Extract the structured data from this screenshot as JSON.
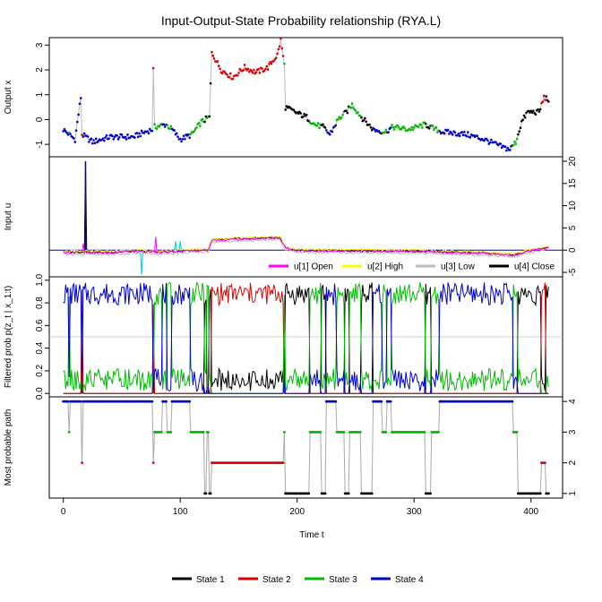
{
  "chart_data": {
    "type": "line",
    "title": "Input-Output-State Probability relationship (RYA.L)",
    "xlabel": "Time t",
    "xlim": [
      0,
      415
    ],
    "x_ticks": [
      0,
      100,
      200,
      300,
      400
    ],
    "state_colors": [
      "#000000",
      "#dd0000",
      "#00bb00",
      "#0000cc"
    ],
    "panels": [
      {
        "name": "output",
        "ylabel": "Output x",
        "ylim": [
          -1.5,
          3.3
        ],
        "y_ticks": [
          -1,
          0,
          1,
          2,
          3
        ],
        "tick_side": "left"
      },
      {
        "name": "input",
        "ylabel": "Input u",
        "ylim": [
          -6,
          21
        ],
        "y_ticks": [
          -5,
          0,
          5,
          10,
          15,
          20
        ],
        "tick_side": "right",
        "legend": [
          "u[1] Open",
          "u[2] High",
          "u[3] Low",
          "u[4] Close"
        ],
        "legend_colors": [
          "#ff00ff",
          "#ffff00",
          "#bbbbbb",
          "#000000"
        ]
      },
      {
        "name": "filtered",
        "ylabel": "Filtered prob p(z_t | x_1:t)",
        "ylim": [
          -0.03,
          1.03
        ],
        "y_ticks": [
          "0.0",
          "0.2",
          "0.4",
          "0.6",
          "0.8",
          "1.0"
        ],
        "tick_side": "left"
      },
      {
        "name": "path",
        "ylabel": "Most probable path",
        "ylim": [
          0.85,
          4.15
        ],
        "y_ticks": [
          1,
          2,
          3,
          4
        ],
        "tick_side": "right"
      }
    ],
    "state_segments": [
      {
        "start": 0,
        "end": 4,
        "state": 4
      },
      {
        "start": 5,
        "end": 5,
        "state": 3
      },
      {
        "start": 6,
        "end": 15,
        "state": 4
      },
      {
        "start": 16,
        "end": 16,
        "state": 2
      },
      {
        "start": 17,
        "end": 76,
        "state": 4
      },
      {
        "start": 77,
        "end": 77,
        "state": 2
      },
      {
        "start": 78,
        "end": 84,
        "state": 3
      },
      {
        "start": 85,
        "end": 88,
        "state": 4
      },
      {
        "start": 89,
        "end": 92,
        "state": 3
      },
      {
        "start": 93,
        "end": 108,
        "state": 4
      },
      {
        "start": 109,
        "end": 120,
        "state": 3
      },
      {
        "start": 121,
        "end": 122,
        "state": 1
      },
      {
        "start": 123,
        "end": 124,
        "state": 3
      },
      {
        "start": 125,
        "end": 126,
        "state": 1
      },
      {
        "start": 127,
        "end": 188,
        "state": 2
      },
      {
        "start": 189,
        "end": 189,
        "state": 3
      },
      {
        "start": 190,
        "end": 210,
        "state": 1
      },
      {
        "start": 211,
        "end": 220,
        "state": 3
      },
      {
        "start": 221,
        "end": 224,
        "state": 1
      },
      {
        "start": 225,
        "end": 233,
        "state": 4
      },
      {
        "start": 234,
        "end": 240,
        "state": 3
      },
      {
        "start": 241,
        "end": 244,
        "state": 1
      },
      {
        "start": 245,
        "end": 254,
        "state": 3
      },
      {
        "start": 255,
        "end": 264,
        "state": 1
      },
      {
        "start": 265,
        "end": 272,
        "state": 4
      },
      {
        "start": 273,
        "end": 276,
        "state": 3
      },
      {
        "start": 277,
        "end": 280,
        "state": 4
      },
      {
        "start": 281,
        "end": 309,
        "state": 3
      },
      {
        "start": 310,
        "end": 314,
        "state": 1
      },
      {
        "start": 315,
        "end": 321,
        "state": 3
      },
      {
        "start": 322,
        "end": 384,
        "state": 4
      },
      {
        "start": 385,
        "end": 388,
        "state": 3
      },
      {
        "start": 389,
        "end": 408,
        "state": 1
      },
      {
        "start": 409,
        "end": 412,
        "state": 2
      },
      {
        "start": 413,
        "end": 415,
        "state": 1
      }
    ],
    "output_keypoints": [
      [
        0,
        -0.4
      ],
      [
        10,
        -0.8
      ],
      [
        15,
        0.9
      ],
      [
        16,
        -0.6
      ],
      [
        25,
        -0.9
      ],
      [
        40,
        -0.7
      ],
      [
        60,
        -0.7
      ],
      [
        70,
        -0.5
      ],
      [
        76,
        -0.4
      ],
      [
        77,
        2.0
      ],
      [
        78,
        -0.3
      ],
      [
        88,
        -0.2
      ],
      [
        93,
        -0.4
      ],
      [
        100,
        -0.8
      ],
      [
        110,
        -0.6
      ],
      [
        118,
        -0.1
      ],
      [
        125,
        0.1
      ],
      [
        127,
        2.7
      ],
      [
        135,
        2.0
      ],
      [
        145,
        1.7
      ],
      [
        155,
        2.1
      ],
      [
        165,
        1.9
      ],
      [
        175,
        2.1
      ],
      [
        183,
        2.6
      ],
      [
        186,
        3.2
      ],
      [
        189,
        2.2
      ],
      [
        190,
        0.5
      ],
      [
        198,
        0.3
      ],
      [
        208,
        0.1
      ],
      [
        215,
        -0.2
      ],
      [
        222,
        -0.3
      ],
      [
        228,
        -0.6
      ],
      [
        235,
        0.0
      ],
      [
        242,
        0.3
      ],
      [
        247,
        0.6
      ],
      [
        255,
        0.1
      ],
      [
        265,
        -0.4
      ],
      [
        275,
        -0.5
      ],
      [
        282,
        -0.3
      ],
      [
        295,
        -0.4
      ],
      [
        310,
        -0.2
      ],
      [
        318,
        -0.4
      ],
      [
        325,
        -0.5
      ],
      [
        345,
        -0.6
      ],
      [
        360,
        -0.8
      ],
      [
        375,
        -1.1
      ],
      [
        382,
        -1.2
      ],
      [
        387,
        -0.9
      ],
      [
        392,
        -0.1
      ],
      [
        397,
        0.3
      ],
      [
        407,
        0.3
      ],
      [
        411,
        0.9
      ],
      [
        415,
        0.8
      ]
    ],
    "input_base_keypoints": [
      [
        0,
        -0.5
      ],
      [
        40,
        -0.6
      ],
      [
        60,
        -0.3
      ],
      [
        85,
        -0.5
      ],
      [
        110,
        -0.1
      ],
      [
        124,
        0.0
      ],
      [
        127,
        2.2
      ],
      [
        185,
        2.8
      ],
      [
        190,
        0.5
      ],
      [
        200,
        -0.1
      ],
      [
        230,
        -0.2
      ],
      [
        300,
        -0.3
      ],
      [
        360,
        -0.7
      ],
      [
        385,
        -1.2
      ],
      [
        397,
        -0.3
      ],
      [
        415,
        0.5
      ]
    ],
    "input_spikes": [
      {
        "t": 19,
        "series": "close",
        "value": 20
      },
      {
        "t": 17,
        "series": "open",
        "value": 1.5
      },
      {
        "t": 67,
        "series": "low",
        "value": -5.5
      },
      {
        "t": 79,
        "series": "open",
        "value": 3.0
      },
      {
        "t": 96,
        "series": "low",
        "value": 2.0
      },
      {
        "t": 100,
        "series": "low",
        "value": 2.0
      }
    ]
  },
  "legend": {
    "items": [
      {
        "label": "State  1",
        "color": "#000000"
      },
      {
        "label": "State  2",
        "color": "#dd0000"
      },
      {
        "label": "State  3",
        "color": "#00bb00"
      },
      {
        "label": "State  4",
        "color": "#0000cc"
      }
    ]
  }
}
